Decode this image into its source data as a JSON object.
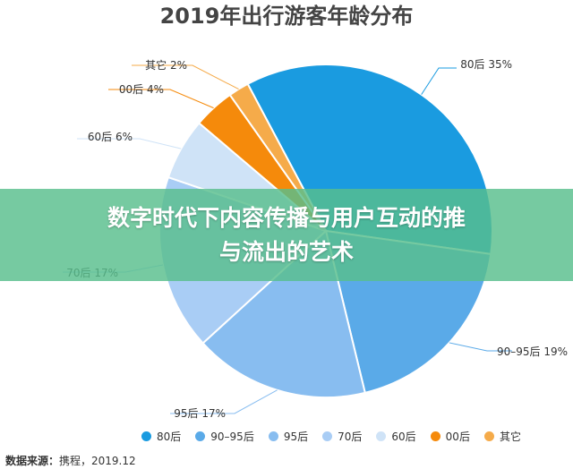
{
  "chart_data": {
    "type": "pie",
    "title": "2019年出行游客年龄分布",
    "categories": [
      "80后",
      "90–95后",
      "95后",
      "70后",
      "60后",
      "00后",
      "其它"
    ],
    "values": [
      35,
      19,
      17,
      17,
      6,
      4,
      2
    ],
    "slice_labels": [
      "80后 35%",
      "90–95后 19%",
      "95后 17%",
      "70后 17%",
      "60后 6%",
      "00后 4%",
      "其它 2%"
    ],
    "colors": [
      "#1a9be0",
      "#5aaae8",
      "#88bdf0",
      "#a9cdf5",
      "#cfe3f7",
      "#f58a0b",
      "#f5ab4a"
    ],
    "legend_labels": [
      "80后",
      "90–95后",
      "95后",
      "70后",
      "60后",
      "00后",
      "其它"
    ],
    "legend_position": "bottom"
  },
  "source": {
    "label": "数据来源：",
    "text": "携程，2019.12"
  },
  "banner": {
    "line1": "数字时代下内容传播与用户互动的推",
    "line2": "与流出的艺术"
  }
}
